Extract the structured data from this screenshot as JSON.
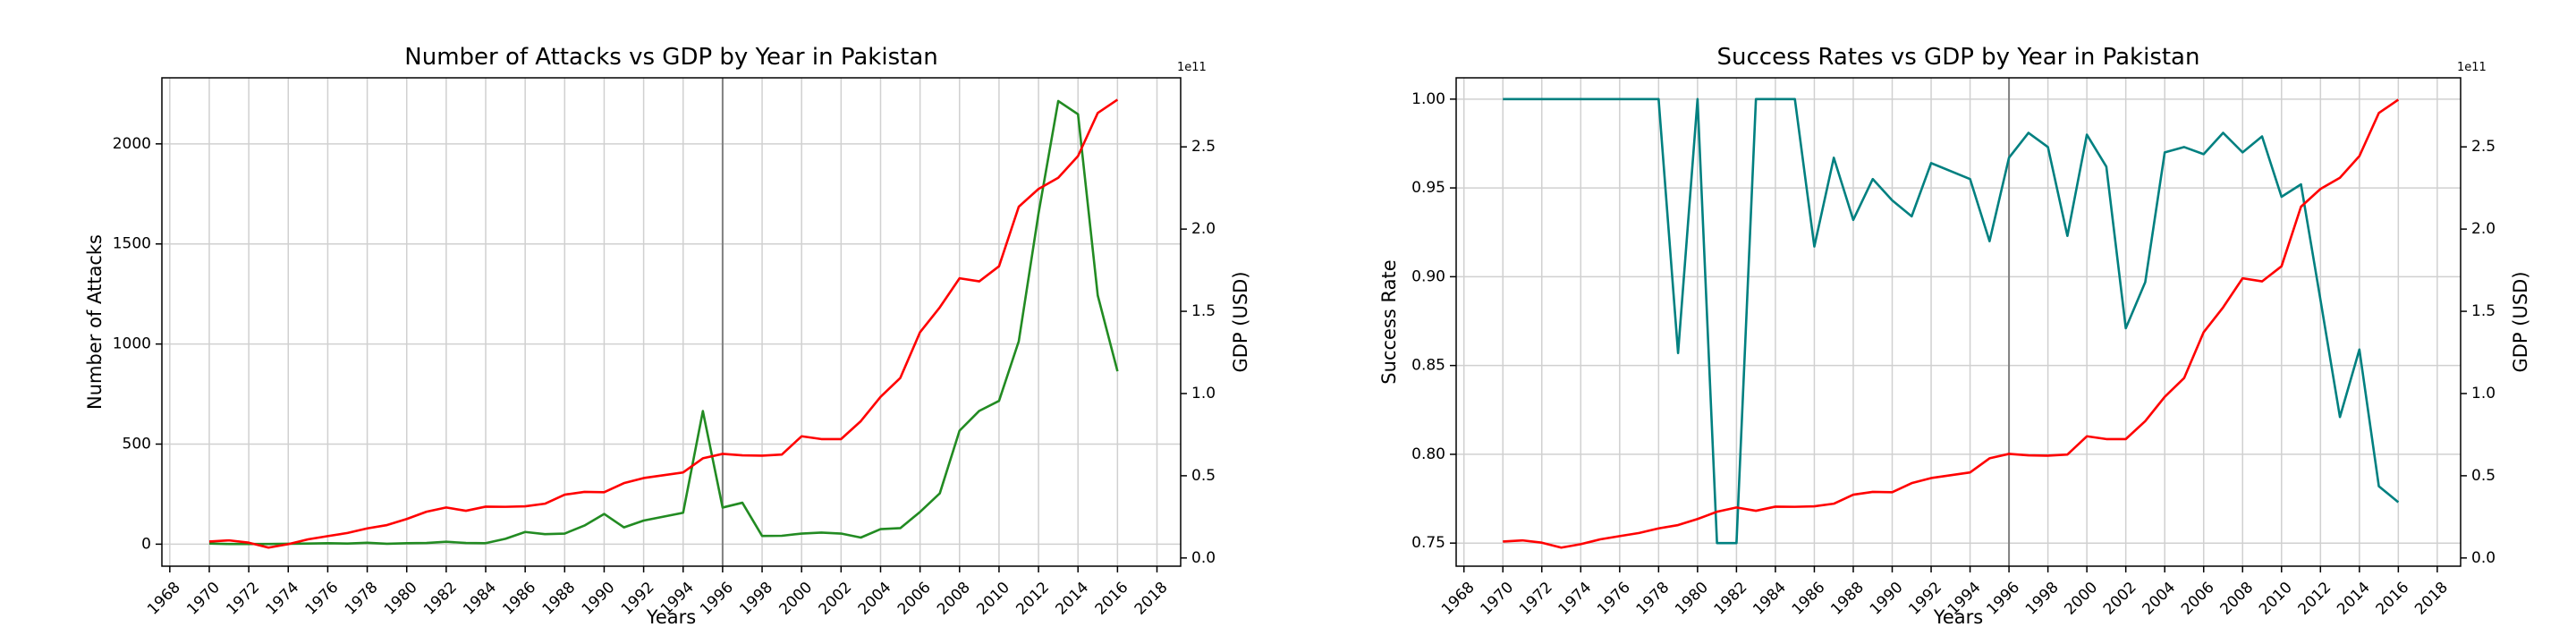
{
  "chart_data": [
    {
      "type": "line",
      "title": "Number of Attacks vs GDP by Year in Pakistan",
      "x_label": "Years",
      "y_label": "Number of Attacks",
      "y_label_color": "#228b22",
      "y2_label": "GDP (USD)",
      "y2_label_color": "#ff0000",
      "y2_offset": "1e11",
      "grid": true,
      "vline": 1996,
      "vline_color": "#808080",
      "x": [
        1970,
        1971,
        1972,
        1973,
        1974,
        1975,
        1976,
        1977,
        1978,
        1979,
        1980,
        1981,
        1982,
        1983,
        1984,
        1985,
        1986,
        1987,
        1988,
        1989,
        1990,
        1991,
        1992,
        1994,
        1995,
        1996,
        1997,
        1998,
        1999,
        2000,
        2001,
        2002,
        2003,
        2004,
        2005,
        2006,
        2007,
        2008,
        2009,
        2010,
        2011,
        2012,
        2013,
        2014,
        2015,
        2016
      ],
      "xlim": [
        1967.6,
        2019.2
      ],
      "xticks": [
        1968,
        1970,
        1972,
        1974,
        1976,
        1978,
        1980,
        1982,
        1984,
        1986,
        1988,
        1990,
        1992,
        1994,
        1996,
        1998,
        2000,
        2002,
        2004,
        2006,
        2008,
        2010,
        2012,
        2014,
        2016,
        2018
      ],
      "ylim": [
        -110,
        2330
      ],
      "yticks": [
        0,
        500,
        1000,
        1500,
        2000
      ],
      "y2lim": [
        -0.05,
        2.92
      ],
      "y2ticks": [
        {
          "value": 0,
          "label": "0.0"
        },
        0.5,
        {
          "value": 1,
          "label": "1.0"
        },
        1.5,
        {
          "value": 2,
          "label": "2.0"
        },
        2.5
      ],
      "series": [
        {
          "color": "#228b22",
          "values": [
            3,
            1,
            1,
            1,
            2,
            3,
            5,
            3,
            7,
            2,
            5,
            6,
            12,
            6,
            5,
            27,
            61,
            50,
            53,
            93,
            151,
            84,
            118,
            157,
            665,
            183,
            207,
            41,
            42,
            53,
            58,
            53,
            33,
            75,
            80,
            161,
            254,
            567,
            666,
            716,
            1014,
            1652,
            2214,
            2148,
            1243,
            864
          ]
        },
        {
          "color": "#ff0000",
          "axis": "y2",
          "values": [
            0.1,
            0.107,
            0.093,
            0.063,
            0.084,
            0.113,
            0.133,
            0.152,
            0.18,
            0.2,
            0.237,
            0.281,
            0.307,
            0.287,
            0.312,
            0.311,
            0.314,
            0.33,
            0.385,
            0.402,
            0.4,
            0.455,
            0.486,
            0.52,
            0.606,
            0.633,
            0.624,
            0.622,
            0.629,
            0.74,
            0.723,
            0.723,
            0.832,
            0.98,
            1.095,
            1.373,
            1.524,
            1.701,
            1.682,
            1.774,
            2.136,
            2.244,
            2.312,
            2.444,
            2.706,
            2.787
          ]
        }
      ]
    },
    {
      "type": "line",
      "title": "Success Rates vs GDP by Year in Pakistan",
      "x_label": "Years",
      "y_label": "Success Rate",
      "y_label_color": "#008080",
      "y2_label": "GDP (USD)",
      "y2_label_color": "#ff0000",
      "y2_offset": "1e11",
      "grid": true,
      "vline": 1996,
      "vline_color": "#808080",
      "x": [
        1970,
        1971,
        1972,
        1973,
        1974,
        1975,
        1976,
        1977,
        1978,
        1979,
        1980,
        1981,
        1982,
        1983,
        1984,
        1985,
        1986,
        1987,
        1988,
        1989,
        1990,
        1991,
        1992,
        1994,
        1995,
        1996,
        1997,
        1998,
        1999,
        2000,
        2001,
        2002,
        2003,
        2004,
        2005,
        2006,
        2007,
        2008,
        2009,
        2010,
        2011,
        2012,
        2013,
        2014,
        2015,
        2016
      ],
      "xlim": [
        1967.6,
        2019.2
      ],
      "xticks": [
        1968,
        1970,
        1972,
        1974,
        1976,
        1978,
        1980,
        1982,
        1984,
        1986,
        1988,
        1990,
        1992,
        1994,
        1996,
        1998,
        2000,
        2002,
        2004,
        2006,
        2008,
        2010,
        2012,
        2014,
        2016,
        2018
      ],
      "ylim": [
        0.737,
        1.012
      ],
      "yticks": [
        0.75,
        {
          "value": 0.8,
          "label": "0.80"
        },
        0.85,
        {
          "value": 0.9,
          "label": "0.90"
        },
        0.95,
        {
          "value": 1,
          "label": "1.00"
        }
      ],
      "y2lim": [
        -0.05,
        2.92
      ],
      "y2ticks": [
        {
          "value": 0,
          "label": "0.0"
        },
        0.5,
        {
          "value": 1,
          "label": "1.0"
        },
        1.5,
        {
          "value": 2,
          "label": "2.0"
        },
        2.5
      ],
      "series": [
        {
          "color": "#008080",
          "values": [
            1,
            1,
            1,
            1,
            1,
            1,
            1,
            1,
            1,
            0.857,
            1,
            0.75,
            0.75,
            1,
            1,
            1,
            0.917,
            0.967,
            0.932,
            0.955,
            0.943,
            0.934,
            0.964,
            0.955,
            0.92,
            0.967,
            0.981,
            0.973,
            0.923,
            0.98,
            0.962,
            0.871,
            0.897,
            0.97,
            0.973,
            0.969,
            0.981,
            0.97,
            0.979,
            0.945,
            0.952,
            0.887,
            0.821,
            0.859,
            0.782,
            0.773
          ]
        },
        {
          "color": "#ff0000",
          "axis": "y2",
          "values": [
            0.1,
            0.107,
            0.093,
            0.063,
            0.084,
            0.113,
            0.133,
            0.152,
            0.18,
            0.2,
            0.237,
            0.281,
            0.307,
            0.287,
            0.312,
            0.311,
            0.314,
            0.33,
            0.385,
            0.402,
            0.4,
            0.455,
            0.486,
            0.52,
            0.606,
            0.633,
            0.624,
            0.622,
            0.629,
            0.74,
            0.723,
            0.723,
            0.832,
            0.98,
            1.095,
            1.373,
            1.524,
            1.701,
            1.682,
            1.774,
            2.136,
            2.244,
            2.312,
            2.444,
            2.706,
            2.787
          ]
        }
      ]
    }
  ]
}
